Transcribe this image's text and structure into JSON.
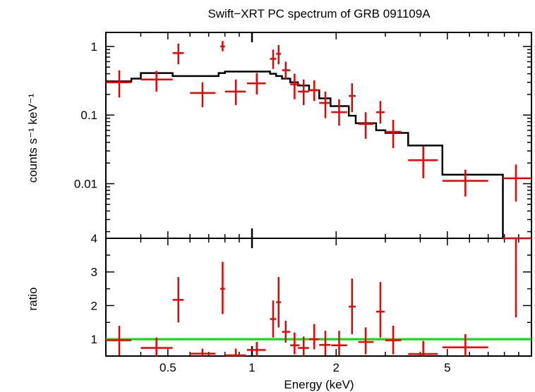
{
  "chart_data": [
    {
      "type": "step-with-errorbars",
      "title": "Swift−XRT PC spectrum of GRB 091109A",
      "ylabel": "counts s⁻¹ keV⁻¹",
      "xscale": "log",
      "yscale": "log",
      "xlim": [
        0.3,
        10
      ],
      "ylim": [
        0.0016,
        1.6
      ],
      "yticks": [
        "1",
        "0.1",
        "0.01"
      ],
      "colors": {
        "data": "#ee0000",
        "model": "#000000"
      },
      "data_points": [
        {
          "x": 0.335,
          "xlo": 0.3,
          "xhi": 0.37,
          "y": 0.3,
          "ylo": 0.18,
          "yhi": 0.45
        },
        {
          "x": 0.455,
          "xlo": 0.4,
          "xhi": 0.52,
          "y": 0.33,
          "ylo": 0.22,
          "yhi": 0.44
        },
        {
          "x": 0.545,
          "xlo": 0.52,
          "xhi": 0.57,
          "y": 0.8,
          "ylo": 0.55,
          "yhi": 1.1
        },
        {
          "x": 0.665,
          "xlo": 0.6,
          "xhi": 0.74,
          "y": 0.21,
          "ylo": 0.13,
          "yhi": 0.3
        },
        {
          "x": 0.785,
          "xlo": 0.77,
          "xhi": 0.8,
          "y": 1.0,
          "ylo": 0.85,
          "yhi": 1.2
        },
        {
          "x": 0.875,
          "xlo": 0.8,
          "xhi": 0.95,
          "y": 0.22,
          "ylo": 0.14,
          "yhi": 0.33
        },
        {
          "x": 1.04,
          "xlo": 0.96,
          "xhi": 1.12,
          "y": 0.29,
          "ylo": 0.2,
          "yhi": 0.41
        },
        {
          "x": 1.19,
          "xlo": 1.16,
          "xhi": 1.22,
          "y": 0.66,
          "ylo": 0.47,
          "yhi": 0.9
        },
        {
          "x": 1.245,
          "xlo": 1.22,
          "xhi": 1.27,
          "y": 0.78,
          "ylo": 0.55,
          "yhi": 1.05
        },
        {
          "x": 1.32,
          "xlo": 1.28,
          "xhi": 1.37,
          "y": 0.45,
          "ylo": 0.33,
          "yhi": 0.6
        },
        {
          "x": 1.42,
          "xlo": 1.37,
          "xhi": 1.48,
          "y": 0.28,
          "ylo": 0.17,
          "yhi": 0.4
        },
        {
          "x": 1.53,
          "xlo": 1.46,
          "xhi": 1.6,
          "y": 0.22,
          "ylo": 0.14,
          "yhi": 0.33
        },
        {
          "x": 1.67,
          "xlo": 1.6,
          "xhi": 1.74,
          "y": 0.23,
          "ylo": 0.16,
          "yhi": 0.32
        },
        {
          "x": 1.83,
          "xlo": 1.74,
          "xhi": 1.91,
          "y": 0.15,
          "ylo": 0.09,
          "yhi": 0.22
        },
        {
          "x": 2.05,
          "xlo": 1.92,
          "xhi": 2.19,
          "y": 0.11,
          "ylo": 0.07,
          "yhi": 0.17
        },
        {
          "x": 2.28,
          "xlo": 2.22,
          "xhi": 2.35,
          "y": 0.19,
          "ylo": 0.11,
          "yhi": 0.29
        },
        {
          "x": 2.55,
          "xlo": 2.4,
          "xhi": 2.72,
          "y": 0.074,
          "ylo": 0.045,
          "yhi": 0.11
        },
        {
          "x": 2.88,
          "xlo": 2.78,
          "xhi": 2.98,
          "y": 0.11,
          "ylo": 0.075,
          "yhi": 0.16
        },
        {
          "x": 3.2,
          "xlo": 3.0,
          "xhi": 3.42,
          "y": 0.057,
          "ylo": 0.033,
          "yhi": 0.085
        },
        {
          "x": 4.1,
          "xlo": 3.62,
          "xhi": 4.62,
          "y": 0.022,
          "ylo": 0.012,
          "yhi": 0.035
        },
        {
          "x": 5.8,
          "xlo": 4.8,
          "xhi": 7.0,
          "y": 0.011,
          "ylo": 0.0065,
          "yhi": 0.016
        },
        {
          "x": 8.8,
          "xlo": 7.9,
          "xhi": 10.0,
          "y": 0.012,
          "ylo": 0.0055,
          "yhi": 0.019
        }
      ],
      "model_steps": [
        {
          "x0": 0.3,
          "x1": 0.37,
          "y": 0.31
        },
        {
          "x0": 0.37,
          "x1": 0.4,
          "y": 0.34
        },
        {
          "x0": 0.4,
          "x1": 0.52,
          "y": 0.41
        },
        {
          "x0": 0.52,
          "x1": 0.76,
          "y": 0.37
        },
        {
          "x0": 0.76,
          "x1": 0.8,
          "y": 0.41
        },
        {
          "x0": 0.8,
          "x1": 0.96,
          "y": 0.43
        },
        {
          "x0": 0.96,
          "x1": 1.16,
          "y": 0.43
        },
        {
          "x0": 1.16,
          "x1": 1.22,
          "y": 0.4
        },
        {
          "x0": 1.22,
          "x1": 1.28,
          "y": 0.37
        },
        {
          "x0": 1.28,
          "x1": 1.37,
          "y": 0.34
        },
        {
          "x0": 1.37,
          "x1": 1.46,
          "y": 0.3
        },
        {
          "x0": 1.46,
          "x1": 1.6,
          "y": 0.27
        },
        {
          "x0": 1.6,
          "x1": 1.74,
          "y": 0.23
        },
        {
          "x0": 1.74,
          "x1": 1.91,
          "y": 0.175
        },
        {
          "x0": 1.91,
          "x1": 2.22,
          "y": 0.135
        },
        {
          "x0": 2.22,
          "x1": 2.35,
          "y": 0.098
        },
        {
          "x0": 2.35,
          "x1": 2.78,
          "y": 0.076
        },
        {
          "x0": 2.78,
          "x1": 3.0,
          "y": 0.06
        },
        {
          "x0": 3.0,
          "x1": 3.62,
          "y": 0.055
        },
        {
          "x0": 3.62,
          "x1": 4.8,
          "y": 0.036
        },
        {
          "x0": 4.8,
          "x1": 7.9,
          "y": 0.0135
        },
        {
          "x0": 7.9,
          "x1": 7.9,
          "y": 0.0016
        }
      ]
    },
    {
      "type": "scatter-with-errorbars",
      "ylabel": "ratio",
      "xlabel": "Energy (keV)",
      "xscale": "log",
      "xlim": [
        0.3,
        10
      ],
      "ylim": [
        0.5,
        4.0
      ],
      "xtick_labels": [
        "0.5",
        "1",
        "2",
        "5"
      ],
      "xtick_values": [
        0.5,
        1,
        2,
        5
      ],
      "ytick_labels": [
        "1",
        "2",
        "3",
        "4"
      ],
      "ytick_values": [
        1,
        2,
        3,
        4
      ],
      "reference_line": 1,
      "colors": {
        "data": "#ee0000",
        "reference": "#00dd00"
      },
      "data_points": [
        {
          "x": 0.335,
          "xlo": 0.3,
          "xhi": 0.37,
          "y": 0.97,
          "ylo": 0.52,
          "yhi": 1.4
        },
        {
          "x": 0.455,
          "xlo": 0.4,
          "xhi": 0.52,
          "y": 0.74,
          "ylo": 0.5,
          "yhi": 1.05
        },
        {
          "x": 0.545,
          "xlo": 0.52,
          "xhi": 0.57,
          "y": 2.17,
          "ylo": 1.5,
          "yhi": 2.85
        },
        {
          "x": 0.665,
          "xlo": 0.6,
          "xhi": 0.74,
          "y": 0.57,
          "ylo": 0.5,
          "yhi": 0.72
        },
        {
          "x": 0.785,
          "xlo": 0.77,
          "xhi": 0.8,
          "y": 2.5,
          "ylo": 1.75,
          "yhi": 3.3
        },
        {
          "x": 0.875,
          "xlo": 0.8,
          "xhi": 0.95,
          "y": 0.52,
          "ylo": 0.5,
          "yhi": 0.72
        },
        {
          "x": 1.04,
          "xlo": 0.96,
          "xhi": 1.12,
          "y": 0.68,
          "ylo": 0.5,
          "yhi": 0.92
        },
        {
          "x": 1.19,
          "xlo": 1.16,
          "xhi": 1.22,
          "y": 1.6,
          "ylo": 1.05,
          "yhi": 2.15
        },
        {
          "x": 1.245,
          "xlo": 1.22,
          "xhi": 1.27,
          "y": 2.1,
          "ylo": 1.35,
          "yhi": 2.85
        },
        {
          "x": 1.32,
          "xlo": 1.28,
          "xhi": 1.37,
          "y": 1.22,
          "ylo": 0.9,
          "yhi": 1.55
        },
        {
          "x": 1.42,
          "xlo": 1.37,
          "xhi": 1.48,
          "y": 0.82,
          "ylo": 0.55,
          "yhi": 1.2
        },
        {
          "x": 1.53,
          "xlo": 1.46,
          "xhi": 1.6,
          "y": 0.74,
          "ylo": 0.5,
          "yhi": 1.08
        },
        {
          "x": 1.67,
          "xlo": 1.6,
          "xhi": 1.74,
          "y": 1.0,
          "ylo": 0.7,
          "yhi": 1.45
        },
        {
          "x": 1.83,
          "xlo": 1.74,
          "xhi": 1.91,
          "y": 0.83,
          "ylo": 0.52,
          "yhi": 1.25
        },
        {
          "x": 2.05,
          "xlo": 1.92,
          "xhi": 2.19,
          "y": 0.82,
          "ylo": 0.52,
          "yhi": 1.25
        },
        {
          "x": 2.28,
          "xlo": 2.22,
          "xhi": 2.35,
          "y": 1.97,
          "ylo": 1.15,
          "yhi": 2.8
        },
        {
          "x": 2.55,
          "xlo": 2.4,
          "xhi": 2.72,
          "y": 0.92,
          "ylo": 0.55,
          "yhi": 1.35
        },
        {
          "x": 2.88,
          "xlo": 2.78,
          "xhi": 2.98,
          "y": 1.82,
          "ylo": 1.05,
          "yhi": 2.7
        },
        {
          "x": 3.2,
          "xlo": 3.0,
          "xhi": 3.42,
          "y": 0.97,
          "ylo": 0.55,
          "yhi": 1.4
        },
        {
          "x": 4.1,
          "xlo": 3.62,
          "xhi": 4.62,
          "y": 0.56,
          "ylo": 0.5,
          "yhi": 0.95
        },
        {
          "x": 5.8,
          "xlo": 4.8,
          "xhi": 7.0,
          "y": 0.76,
          "ylo": 0.5,
          "yhi": 1.15
        },
        {
          "x": 8.8,
          "xlo": 7.9,
          "xhi": 10.0,
          "y": 4.0,
          "ylo": 1.65,
          "yhi": 4.0
        }
      ]
    }
  ]
}
